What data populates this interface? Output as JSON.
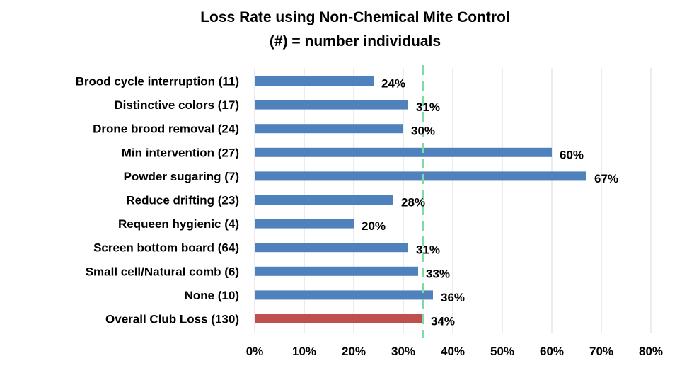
{
  "chart_data": {
    "type": "bar",
    "orientation": "horizontal",
    "title_lines": [
      "Loss Rate using Non-Chemical Mite Control",
      "(#) = number individuals"
    ],
    "xlabel": "",
    "ylabel": "",
    "categories": [
      "Brood cycle interruption (11)",
      "Distinctive colors (17)",
      "Drone brood removal (24)",
      "Min intervention (27)",
      "Powder sugaring (7)",
      "Reduce drifting (23)",
      "Requeen hygienic (4)",
      "Screen bottom board (64)",
      "Small cell/Natural comb (6)",
      "None (10)",
      "Overall Club Loss (130)"
    ],
    "values": [
      24,
      31,
      30,
      60,
      67,
      28,
      20,
      31,
      33,
      36,
      34
    ],
    "data_labels": [
      "24%",
      "31%",
      "30%",
      "60%",
      "67%",
      "28%",
      "20%",
      "31%",
      "33%",
      "36%",
      "34%"
    ],
    "bar_colors": [
      "#4F81BD",
      "#4F81BD",
      "#4F81BD",
      "#4F81BD",
      "#4F81BD",
      "#4F81BD",
      "#4F81BD",
      "#4F81BD",
      "#4F81BD",
      "#4F81BD",
      "#C0504D"
    ],
    "xlim": [
      0,
      80
    ],
    "xticks": [
      0,
      10,
      20,
      30,
      40,
      50,
      60,
      70,
      80
    ],
    "xtick_labels": [
      "0%",
      "10%",
      "20%",
      "30%",
      "40%",
      "50%",
      "60%",
      "70%",
      "80%"
    ],
    "reference_line": {
      "value": 34,
      "style": "dashed",
      "color": "#7DDBA3"
    },
    "grid": {
      "vertical": true,
      "color": "#D9D9D9"
    },
    "legend": "none"
  }
}
